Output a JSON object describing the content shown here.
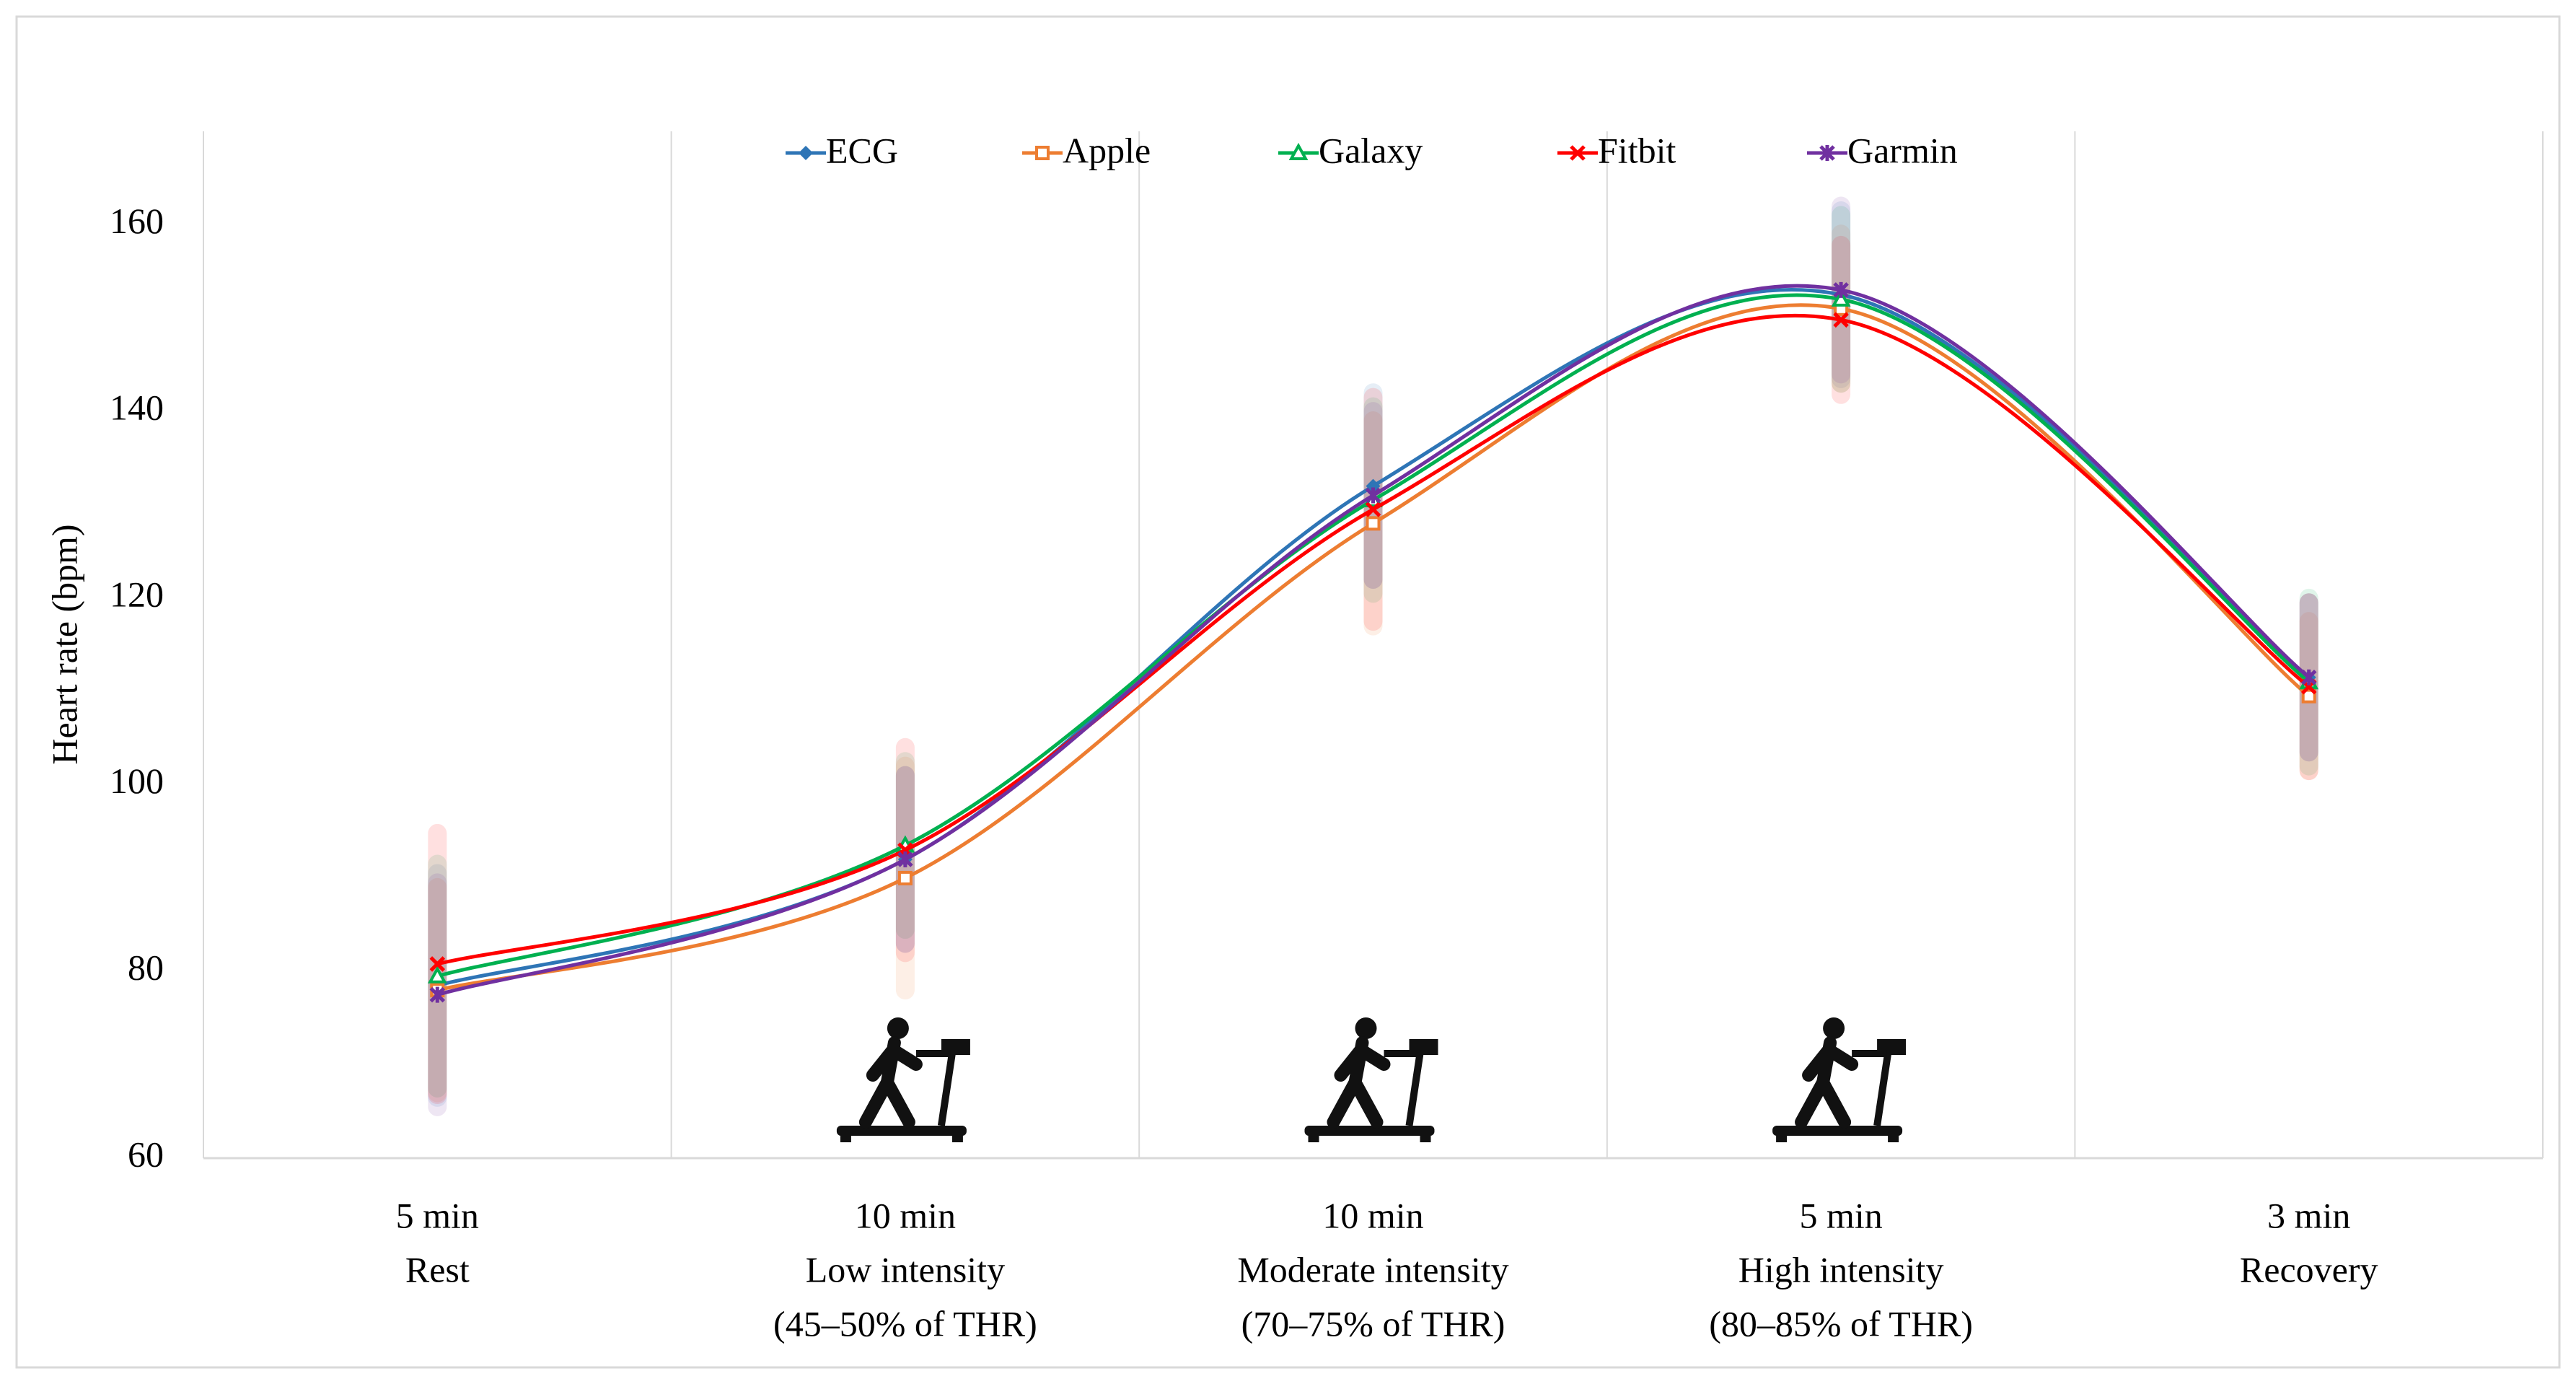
{
  "chart_data": {
    "type": "line",
    "smooth": true,
    "y_label": "Heart rate (bpm)",
    "categories": [
      [
        "5 min",
        "Rest"
      ],
      [
        "10 min",
        "Low intensity",
        "(45–50% of THR)"
      ],
      [
        "10 min",
        "Moderate intensity",
        "(70–75% of THR)"
      ],
      [
        "5 min",
        "High intensity",
        "(80–85% of THR)"
      ],
      [
        "3 min",
        "Recovery"
      ]
    ],
    "series": [
      {
        "name": "ECG",
        "color": "#2e75b6",
        "marker": "diamond",
        "values": [
          78.5,
          92,
          132,
          152.5,
          111.5
        ],
        "errors": [
          12,
          9,
          10,
          9,
          8
        ]
      },
      {
        "name": "Apple",
        "color": "#ed7d31",
        "marker": "square",
        "values": [
          78,
          90,
          128,
          151,
          109.5
        ],
        "errors": [
          11,
          12,
          11,
          8,
          8
        ]
      },
      {
        "name": "Galaxy",
        "color": "#00b050",
        "marker": "triangle",
        "values": [
          79.5,
          93.5,
          130.5,
          152,
          111
        ],
        "errors": [
          12,
          9,
          10,
          9,
          9
        ]
      },
      {
        "name": "Fitbit",
        "color": "#ff0000",
        "marker": "x",
        "values": [
          80.8,
          93,
          129.5,
          149.8,
          110.5
        ],
        "errors": [
          14,
          11,
          12,
          8,
          9
        ]
      },
      {
        "name": "Garmin",
        "color": "#7030a0",
        "marker": "star",
        "values": [
          77.5,
          92,
          131,
          153,
          111.5
        ],
        "errors": [
          12,
          9,
          9,
          9,
          8
        ]
      }
    ],
    "ylim": [
      60,
      170
    ],
    "yticks": [
      60,
      80,
      100,
      120,
      140,
      160
    ],
    "grid": "x",
    "legend": "top"
  }
}
